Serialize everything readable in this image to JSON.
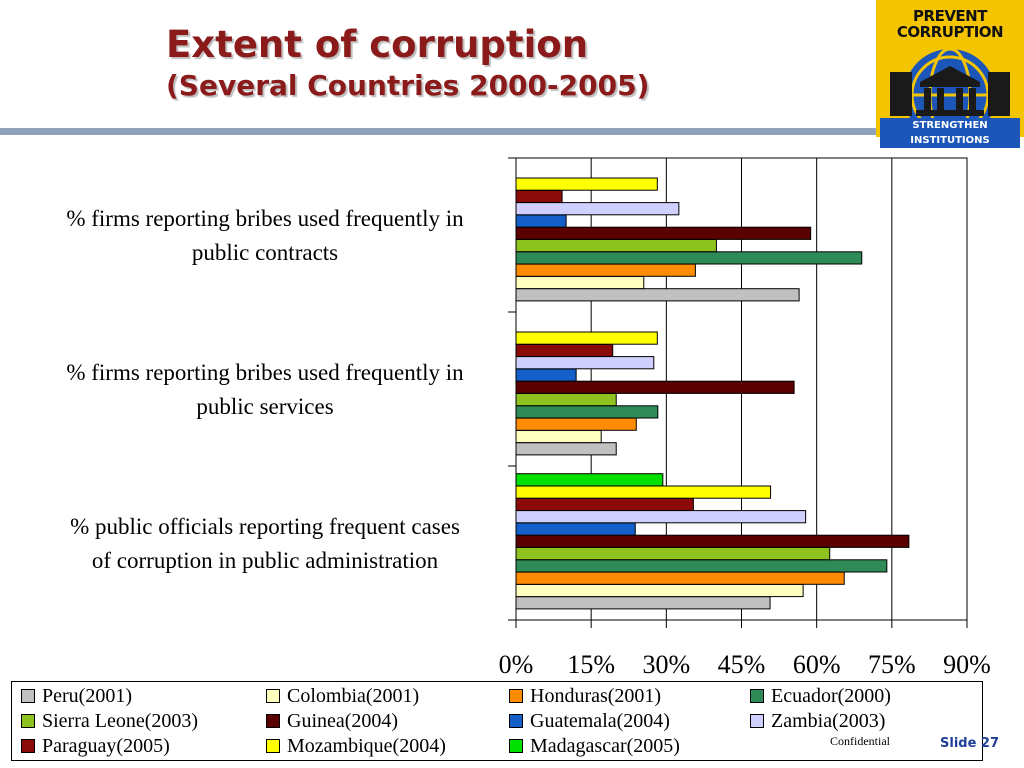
{
  "header": {
    "title_line1": "Extent of corruption",
    "title_line2": "(Several Countries 2000-2005)"
  },
  "logo": {
    "top_line1": "PREVENT",
    "top_line2": "CORRUPTION",
    "bottom_text": "STRENGTHEN INSTITUTIONS",
    "colors": {
      "background": "#f5c400",
      "globe": "#1b56b8"
    }
  },
  "chart_data": {
    "type": "bar",
    "orientation": "horizontal",
    "categories": [
      "% firms reporting bribes used frequently in public contracts",
      "% firms reporting bribes used frequently in public services",
      "% public officials reporting frequent cases of corruption in public administration"
    ],
    "category_lines": [
      [
        "% firms reporting bribes used frequently in",
        "public contracts"
      ],
      [
        "% firms reporting bribes used frequently in",
        "public services"
      ],
      [
        "% public officials reporting frequent cases",
        "of corruption in public administration"
      ]
    ],
    "xlim": [
      0,
      90
    ],
    "xticks": [
      "0%",
      "15%",
      "30%",
      "45%",
      "60%",
      "75%",
      "90%"
    ],
    "grid": "vertical",
    "legend_position": "bottom",
    "series": [
      {
        "name": "Peru(2001)",
        "color": "#c0c0c0",
        "values": [
          56.5,
          20,
          50.7
        ]
      },
      {
        "name": "Colombia(2001)",
        "color": "#ffffc0",
        "values": [
          25.5,
          17,
          57.3
        ]
      },
      {
        "name": "Honduras(2001)",
        "color": "#ff8c00",
        "values": [
          35.8,
          24,
          65.5
        ]
      },
      {
        "name": "Ecuador(2000)",
        "color": "#2e8b57",
        "values": [
          69,
          28.3,
          74
        ]
      },
      {
        "name": "Sierra Leone(2003)",
        "color": "#8dc21f",
        "values": [
          40,
          20,
          62.6
        ]
      },
      {
        "name": "Guinea(2004)",
        "color": "#5a0000",
        "values": [
          58.8,
          55.5,
          78.4
        ]
      },
      {
        "name": "Guatemala(2004)",
        "color": "#1560c8",
        "values": [
          10,
          12,
          23.8
        ]
      },
      {
        "name": "Zambia(2003)",
        "color": "#d0d0ff",
        "values": [
          32.5,
          27.5,
          57.8
        ]
      },
      {
        "name": "Paraguay(2005)",
        "color": "#8b0a0a",
        "values": [
          9.2,
          19.3,
          35.4
        ]
      },
      {
        "name": "Mozambique(2004)",
        "color": "#ffff00",
        "values": [
          28.2,
          28.2,
          50.8
        ]
      },
      {
        "name": "Madagascar(2005)",
        "color": "#00e000",
        "values": [
          null,
          null,
          29.3
        ]
      }
    ]
  },
  "footer": {
    "confidential": "Confidential",
    "slide": "Slide 27"
  }
}
